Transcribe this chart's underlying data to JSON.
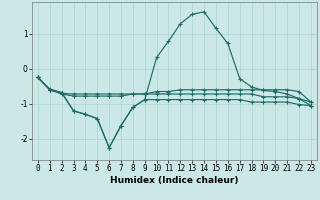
{
  "x": [
    0,
    1,
    2,
    3,
    4,
    5,
    6,
    7,
    8,
    9,
    10,
    11,
    12,
    13,
    14,
    15,
    16,
    17,
    18,
    19,
    20,
    21,
    22,
    23
  ],
  "line_main": [
    -0.25,
    -0.58,
    -0.68,
    -1.2,
    -1.3,
    -1.42,
    -2.25,
    -1.62,
    -1.1,
    -0.88,
    0.32,
    0.78,
    1.28,
    1.55,
    1.62,
    1.15,
    0.72,
    -0.28,
    -0.52,
    -0.62,
    -0.65,
    -0.72,
    -0.85,
    -1.05
  ],
  "line_flat1": [
    -0.25,
    -0.6,
    -0.7,
    -0.72,
    -0.72,
    -0.72,
    -0.72,
    -0.72,
    -0.72,
    -0.72,
    -0.72,
    -0.72,
    -0.72,
    -0.72,
    -0.72,
    -0.72,
    -0.72,
    -0.72,
    -0.72,
    -0.8,
    -0.8,
    -0.8,
    -0.85,
    -0.95
  ],
  "line_flat2": [
    -0.25,
    -0.6,
    -0.72,
    -0.78,
    -0.78,
    -0.78,
    -0.78,
    -0.78,
    -0.72,
    -0.72,
    -0.65,
    -0.65,
    -0.6,
    -0.6,
    -0.6,
    -0.6,
    -0.6,
    -0.6,
    -0.6,
    -0.6,
    -0.6,
    -0.6,
    -0.65,
    -0.95
  ],
  "line_lower": [
    -0.25,
    -0.6,
    -0.68,
    -1.2,
    -1.3,
    -1.42,
    -2.25,
    -1.62,
    -1.1,
    -0.88,
    -0.88,
    -0.88,
    -0.88,
    -0.88,
    -0.88,
    -0.88,
    -0.88,
    -0.88,
    -0.95,
    -0.95,
    -0.95,
    -0.95,
    -1.02,
    -1.05
  ],
  "bg_color": "#cce8e6",
  "grid_color": "#aad4d2",
  "line_color": "#1e6b68",
  "xlabel": "Humidex (Indice chaleur)",
  "xlim": [
    -0.5,
    23.5
  ],
  "ylim": [
    -2.6,
    1.9
  ],
  "yticks": [
    -2,
    -1,
    0,
    1
  ],
  "xticks": [
    0,
    1,
    2,
    3,
    4,
    5,
    6,
    7,
    8,
    9,
    10,
    11,
    12,
    13,
    14,
    15,
    16,
    17,
    18,
    19,
    20,
    21,
    22,
    23
  ],
  "tick_fontsize": 5.5,
  "xlabel_fontsize": 6.5,
  "marker": "+",
  "ms": 3.0,
  "lw": 0.85
}
